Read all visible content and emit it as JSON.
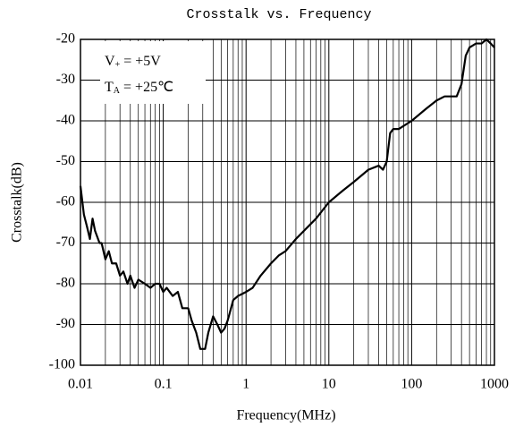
{
  "chart_data": {
    "type": "line",
    "title": "Crosstalk vs. Frequency",
    "x_label": "Frequency(MHz)",
    "y_label": "Crosstalk(dB)",
    "x_log": true,
    "grid": true,
    "minor_grid": true,
    "xlim": [
      0.01,
      1000
    ],
    "xticks": [
      0.01,
      0.1,
      1,
      10,
      100,
      1000
    ],
    "ylim": [
      -100,
      -20
    ],
    "yticks": [
      -100,
      -90,
      -80,
      -70,
      -60,
      -50,
      -40,
      -30,
      -20
    ],
    "annotations": [
      {
        "base": "V",
        "sub": "+",
        "text": " = +5V"
      },
      {
        "base": "T",
        "sub": "A",
        "text": " = +25℃"
      }
    ],
    "x": [
      0.01,
      0.011,
      0.012,
      0.013,
      0.014,
      0.015,
      0.017,
      0.018,
      0.02,
      0.022,
      0.024,
      0.027,
      0.03,
      0.033,
      0.037,
      0.04,
      0.045,
      0.05,
      0.06,
      0.07,
      0.08,
      0.09,
      0.1,
      0.11,
      0.13,
      0.15,
      0.17,
      0.2,
      0.22,
      0.25,
      0.28,
      0.32,
      0.35,
      0.4,
      0.45,
      0.5,
      0.55,
      0.6,
      0.7,
      0.8,
      1,
      1.2,
      1.5,
      2,
      2.5,
      3,
      4,
      5,
      7,
      10,
      15,
      20,
      30,
      40,
      45,
      50,
      55,
      60,
      70,
      100,
      150,
      200,
      250,
      300,
      350,
      400,
      450,
      500,
      600,
      700,
      800,
      900,
      1000
    ],
    "series": [
      {
        "name": "Crosstalk",
        "color": "#000000",
        "values": [
          -56,
          -63,
          -66,
          -69,
          -64,
          -67,
          -70,
          -70,
          -74,
          -72,
          -75,
          -75,
          -78,
          -77,
          -80,
          -78,
          -81,
          -79,
          -80,
          -81,
          -80,
          -80,
          -82,
          -81,
          -83,
          -82,
          -86,
          -86,
          -89,
          -92,
          -96,
          -96,
          -92,
          -88,
          -90,
          -92,
          -91,
          -89,
          -84,
          -83,
          -82,
          -81,
          -78,
          -75,
          -73,
          -72,
          -69,
          -67,
          -64,
          -60,
          -57,
          -55,
          -52,
          -51,
          -52,
          -50,
          -43,
          -42,
          -42,
          -40,
          -37,
          -35,
          -34,
          -34,
          -34,
          -31,
          -24,
          -22,
          -21,
          -21,
          -20,
          -21,
          -22
        ]
      }
    ]
  }
}
